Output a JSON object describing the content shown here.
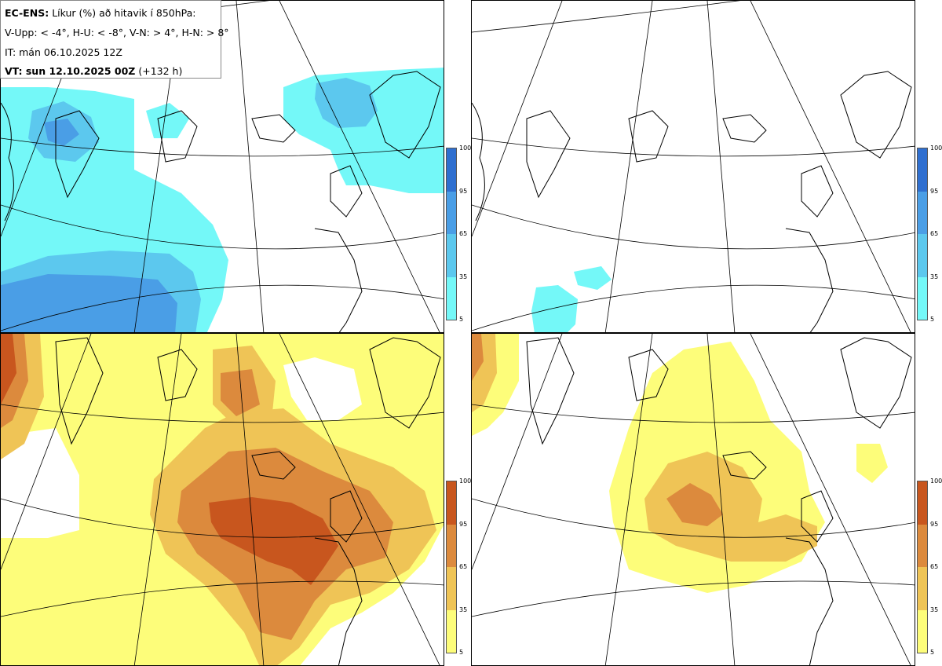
{
  "header": {
    "title_bold": "EC-ENS:",
    "title_rest": "Líkur (%) að hitavik í 850hPa:",
    "legend_line": "V-Upp: < -4°, H-U: < -8°, V-N: > 4°, H-N: > 8°",
    "init_time": "IT: mán 06.10.2025 12Z",
    "valid_bold": "VT: sun 12.10.2025 00Z",
    "valid_rest": "(+132 h)"
  },
  "colorbar_ticks": [
    "100",
    "95",
    "65",
    "35",
    "5"
  ],
  "colors": {
    "cold": [
      "#74f8f8",
      "#5cc8ee",
      "#4a9ee6",
      "#2f6fd0"
    ],
    "warm": [
      "#fdfd7a",
      "#efc456",
      "#dc8a3d",
      "#c8561e"
    ],
    "coast": "#000000",
    "grid": "#000000"
  },
  "panels": [
    {
      "id": "V-Upp",
      "type": "cold"
    },
    {
      "id": "H-U",
      "type": "cold"
    },
    {
      "id": "V-N",
      "type": "warm"
    },
    {
      "id": "H-N",
      "type": "warm"
    }
  ]
}
